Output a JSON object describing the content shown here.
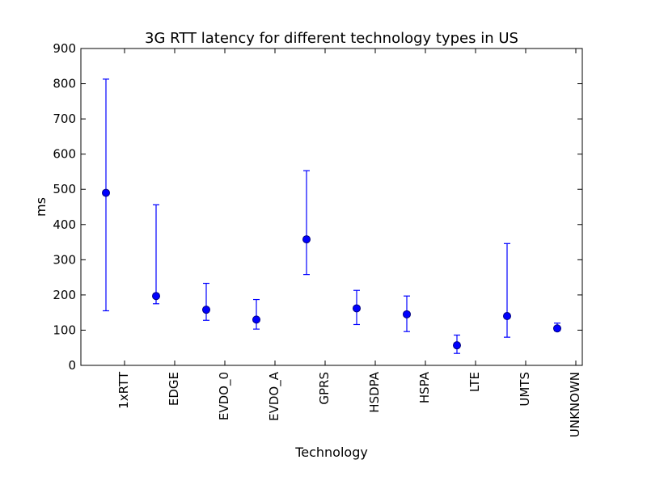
{
  "chart_data": {
    "type": "scatter",
    "title": "3G RTT latency for different technology types in US",
    "xlabel": "Technology",
    "ylabel": "ms",
    "ylim": [
      0,
      900
    ],
    "yticks": [
      0,
      100,
      200,
      300,
      400,
      500,
      600,
      700,
      800,
      900
    ],
    "categories": [
      "1xRTT",
      "EDGE",
      "EVDO_0",
      "EVDO_A",
      "GPRS",
      "HSDPA",
      "HSPA",
      "LTE",
      "UMTS",
      "UNKNOWN"
    ],
    "values": [
      490,
      197,
      158,
      130,
      358,
      162,
      145,
      57,
      140,
      105
    ],
    "lower": [
      155,
      175,
      128,
      103,
      258,
      116,
      96,
      34,
      80,
      98
    ],
    "upper": [
      813,
      456,
      233,
      187,
      553,
      213,
      197,
      86,
      346,
      120
    ],
    "colors": {
      "marker": "#0000ff",
      "errorbar": "#0000ff"
    },
    "grid": false,
    "legend": "none"
  }
}
